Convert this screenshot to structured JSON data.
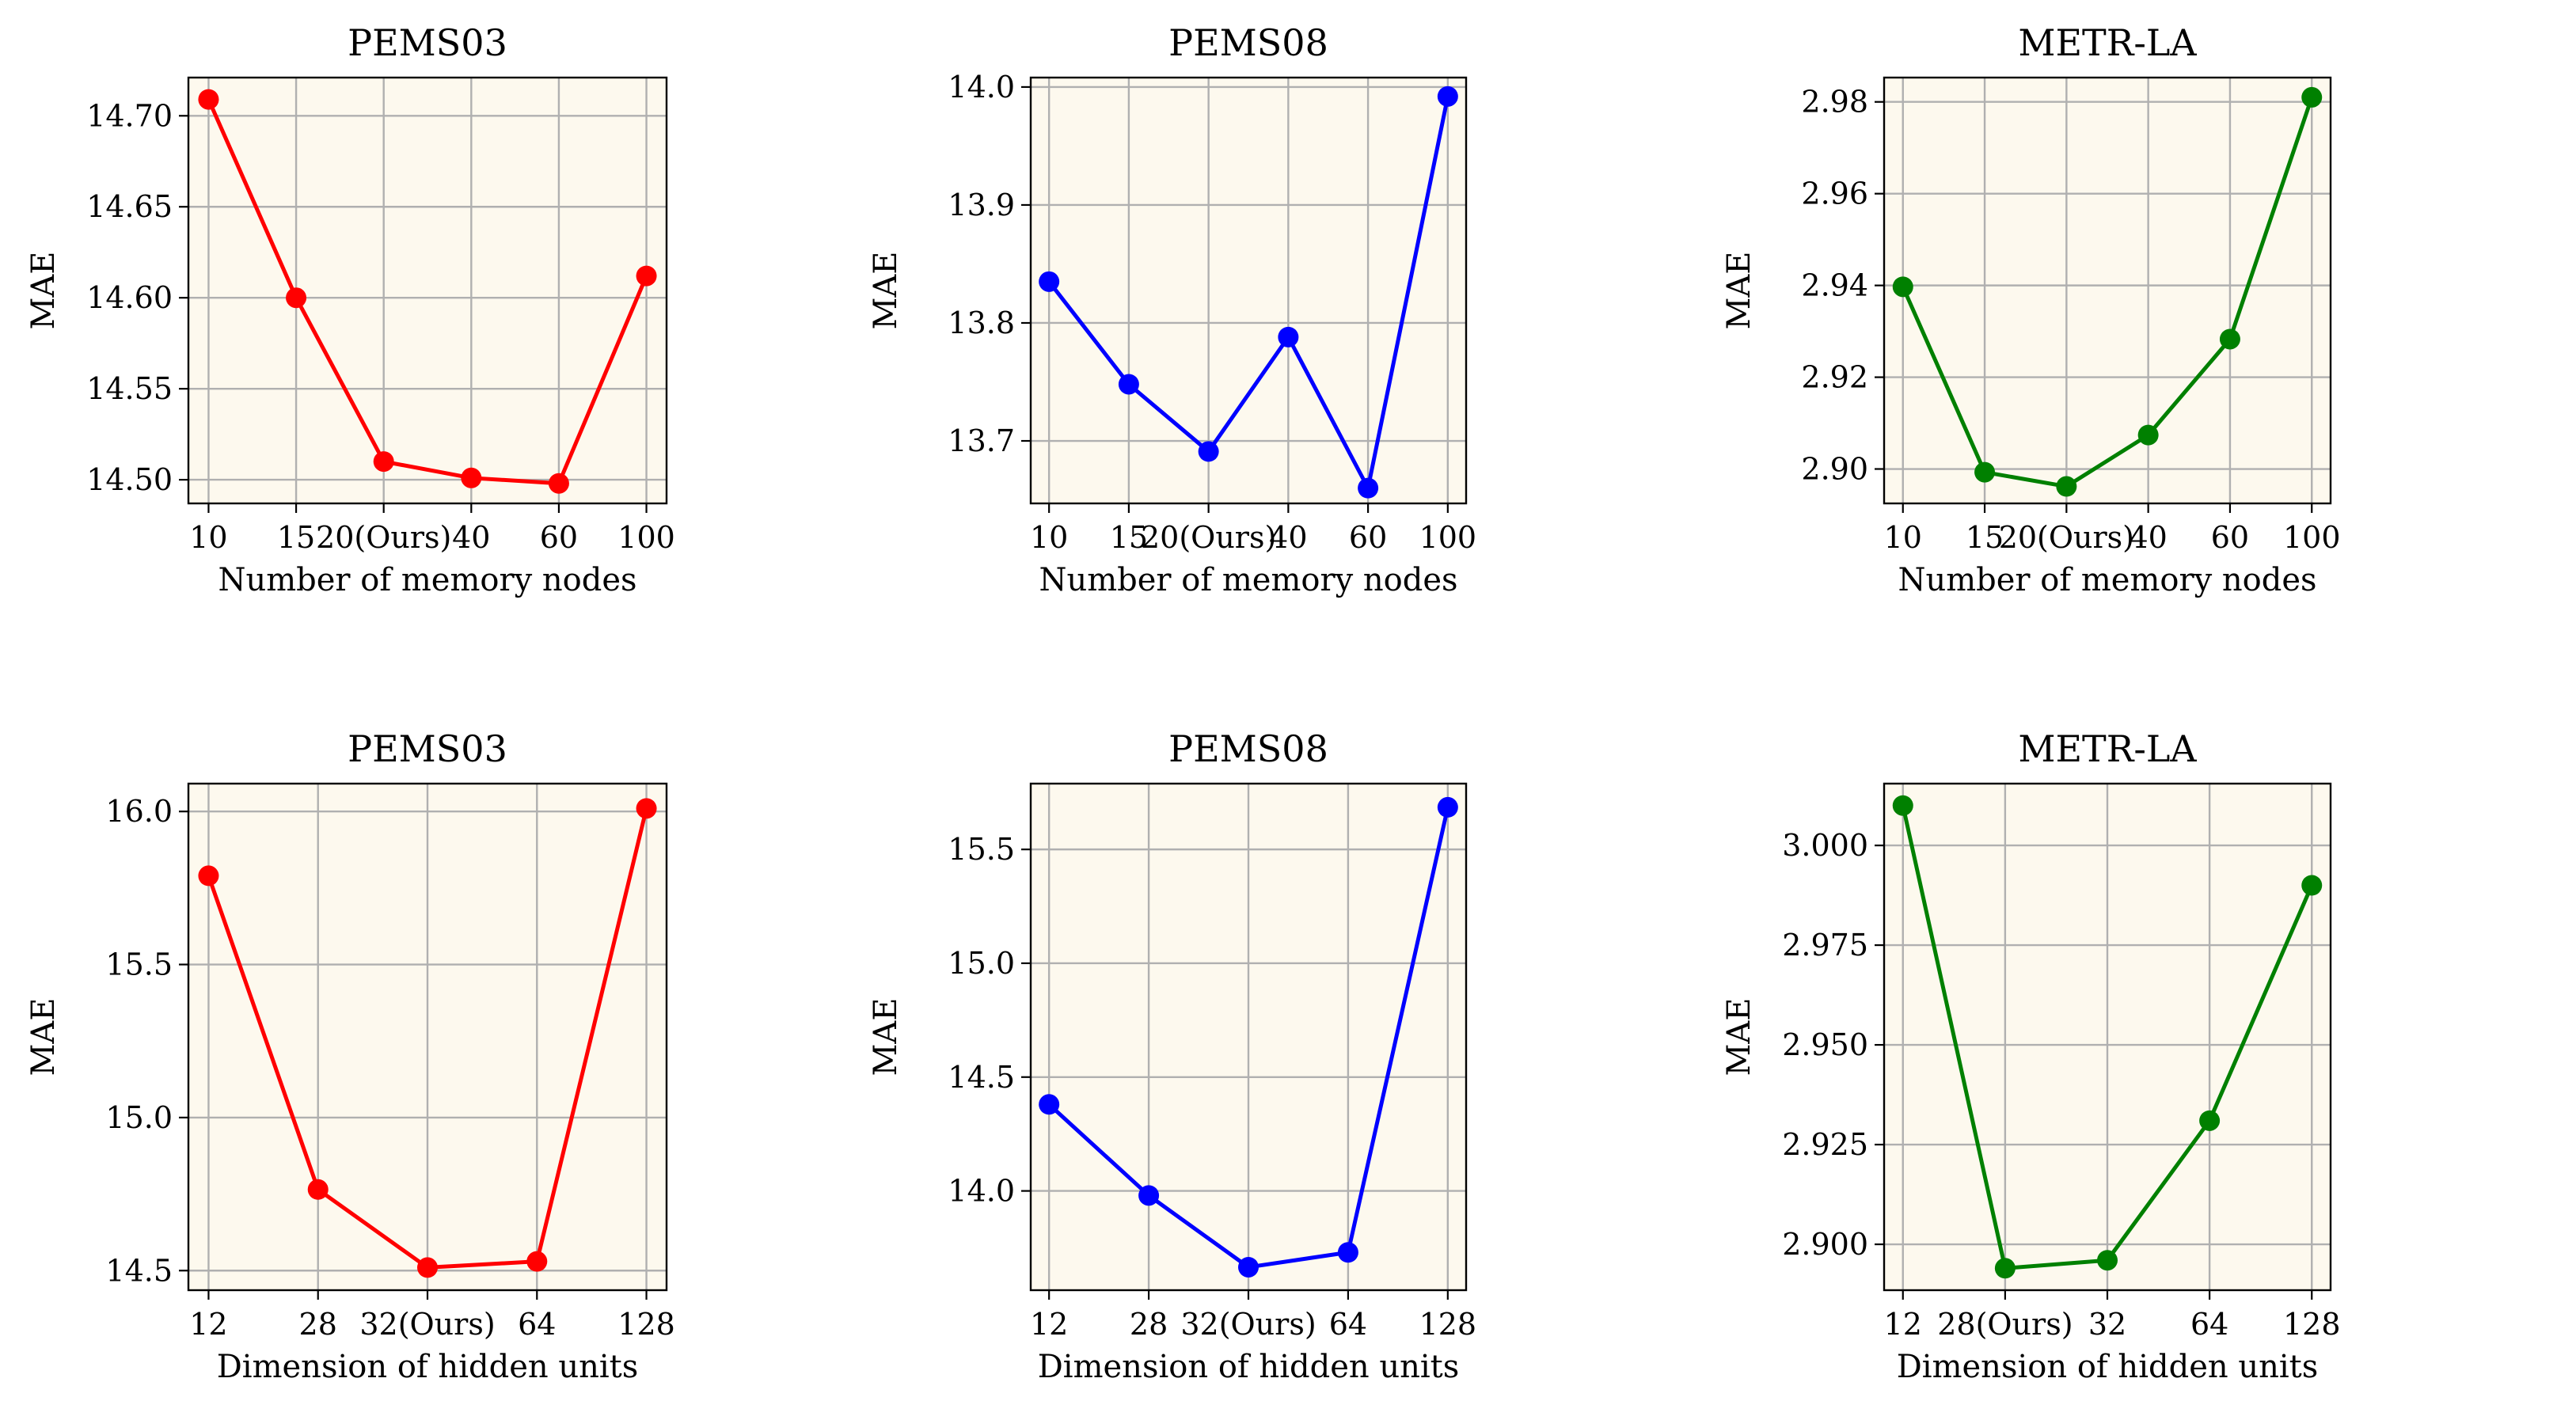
{
  "chart_data": [
    {
      "type": "line",
      "title": "PEMS03",
      "xlabel": "Number of memory nodes",
      "ylabel": "MAE",
      "categories": [
        "10",
        "15",
        "20(Ours)",
        "40",
        "60",
        "100"
      ],
      "values": [
        14.709,
        14.6,
        14.51,
        14.501,
        14.498,
        14.612
      ],
      "yticks": [
        14.5,
        14.55,
        14.6,
        14.65,
        14.7
      ],
      "ytick_labels": [
        "14.50",
        "14.55",
        "14.60",
        "14.65",
        "14.70"
      ],
      "ylim": [
        14.487,
        14.721
      ],
      "color": "#ff0000",
      "grid": true
    },
    {
      "type": "line",
      "title": "PEMS08",
      "xlabel": "Number of memory nodes",
      "ylabel": "MAE",
      "categories": [
        "10",
        "15",
        "20(Ours)",
        "40",
        "60",
        "100"
      ],
      "values": [
        13.835,
        13.748,
        13.691,
        13.788,
        13.66,
        13.992
      ],
      "yticks": [
        13.7,
        13.8,
        13.9,
        14.0
      ],
      "ytick_labels": [
        "13.7",
        "13.8",
        "13.9",
        "14.0"
      ],
      "ylim": [
        13.647,
        14.008
      ],
      "color": "#0000ff",
      "grid": true
    },
    {
      "type": "line",
      "title": "METR-LA",
      "xlabel": "Number of memory nodes",
      "ylabel": "MAE",
      "categories": [
        "10",
        "15",
        "20(Ours)",
        "40",
        "60",
        "100"
      ],
      "values": [
        2.9397,
        2.8993,
        2.8962,
        2.9074,
        2.9283,
        2.981
      ],
      "yticks": [
        2.9,
        2.92,
        2.94,
        2.96,
        2.98
      ],
      "ytick_labels": [
        "2.90",
        "2.92",
        "2.94",
        "2.96",
        "2.98"
      ],
      "ylim": [
        2.8925,
        2.9853
      ],
      "color": "#008000",
      "grid": true
    },
    {
      "type": "line",
      "title": "PEMS03",
      "xlabel": "Dimension of hidden units",
      "ylabel": "MAE",
      "categories": [
        "12",
        "28",
        "32(Ours)",
        "64",
        "128"
      ],
      "values": [
        15.79,
        14.765,
        14.51,
        14.53,
        16.01
      ],
      "yticks": [
        14.5,
        15.0,
        15.5,
        16.0
      ],
      "ytick_labels": [
        "14.5",
        "15.0",
        "15.5",
        "16.0"
      ],
      "ylim": [
        14.436,
        16.091
      ],
      "color": "#ff0000",
      "grid": true
    },
    {
      "type": "line",
      "title": "PEMS08",
      "xlabel": "Dimension of hidden units",
      "ylabel": "MAE",
      "categories": [
        "12",
        "28",
        "32(Ours)",
        "64",
        "128"
      ],
      "values": [
        14.38,
        13.98,
        13.665,
        13.73,
        15.685
      ],
      "yticks": [
        14.0,
        14.5,
        15.0,
        15.5
      ],
      "ytick_labels": [
        "14.0",
        "14.5",
        "15.0",
        "15.5"
      ],
      "ylim": [
        13.564,
        15.789
      ],
      "color": "#0000ff",
      "grid": true
    },
    {
      "type": "line",
      "title": "METR-LA",
      "xlabel": "Dimension of hidden units",
      "ylabel": "MAE",
      "categories": [
        "12",
        "28(Ours)",
        "32",
        "64",
        "128"
      ],
      "values": [
        3.01,
        2.894,
        2.896,
        2.931,
        2.99
      ],
      "yticks": [
        2.9,
        2.925,
        2.95,
        2.975,
        3.0
      ],
      "ytick_labels": [
        "2.900",
        "2.925",
        "2.950",
        "2.975",
        "3.000"
      ],
      "ylim": [
        2.8885,
        3.0155
      ],
      "color": "#008000",
      "grid": true
    }
  ]
}
